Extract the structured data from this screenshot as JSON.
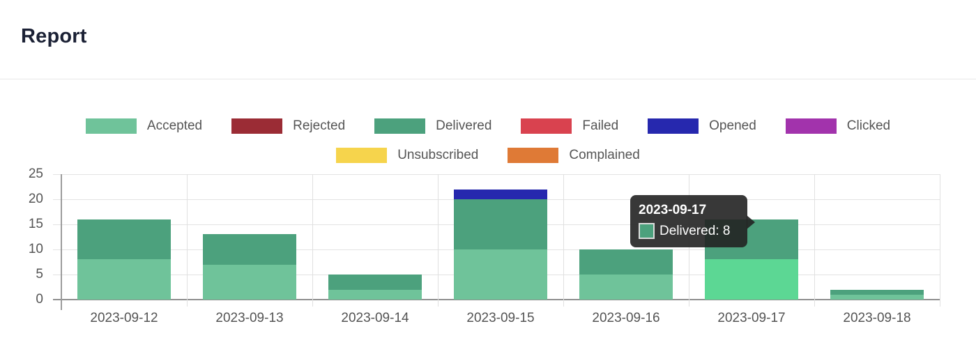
{
  "header": {
    "title": "Report"
  },
  "chart_data": {
    "type": "bar",
    "stacked": true,
    "title": "Report",
    "xlabel": "",
    "ylabel": "",
    "grid": true,
    "legend_position": "top",
    "ylim": [
      0,
      25
    ],
    "y_ticks": [
      0,
      5,
      10,
      15,
      20,
      25
    ],
    "categories": [
      "2023-09-12",
      "2023-09-13",
      "2023-09-14",
      "2023-09-15",
      "2023-09-16",
      "2023-09-17",
      "2023-09-18"
    ],
    "series": [
      {
        "name": "Accepted",
        "color": "#6fc39a",
        "legend_row": 1,
        "values": [
          8,
          7,
          2,
          10,
          5,
          8,
          1
        ]
      },
      {
        "name": "Rejected",
        "color": "#9b2c35",
        "legend_row": 1,
        "values": [
          0,
          0,
          0,
          0,
          0,
          0,
          0
        ]
      },
      {
        "name": "Delivered",
        "color": "#4ca17d",
        "legend_row": 1,
        "values": [
          8,
          6,
          3,
          10,
          5,
          8,
          1
        ]
      },
      {
        "name": "Failed",
        "color": "#d9424f",
        "legend_row": 1,
        "values": [
          0,
          0,
          0,
          0,
          0,
          0,
          0
        ]
      },
      {
        "name": "Opened",
        "color": "#2628ae",
        "legend_row": 1,
        "values": [
          0,
          0,
          0,
          2,
          0,
          0,
          0
        ]
      },
      {
        "name": "Clicked",
        "color": "#a233ac",
        "legend_row": 1,
        "values": [
          0,
          0,
          0,
          0,
          0,
          0,
          0
        ]
      },
      {
        "name": "Unsubscribed",
        "color": "#f6d44c",
        "legend_row": 2,
        "values": [
          0,
          0,
          0,
          0,
          0,
          0,
          0
        ]
      },
      {
        "name": "Complained",
        "color": "#df7a36",
        "legend_row": 2,
        "values": [
          0,
          0,
          0,
          0,
          0,
          0,
          0
        ]
      }
    ],
    "highlight": {
      "category_index": 5,
      "series": "Accepted",
      "color": "#5cd794"
    }
  },
  "tooltip": {
    "title": "2023-09-17",
    "label": "Delivered: 8",
    "swatch_color": "#4ca17d"
  }
}
